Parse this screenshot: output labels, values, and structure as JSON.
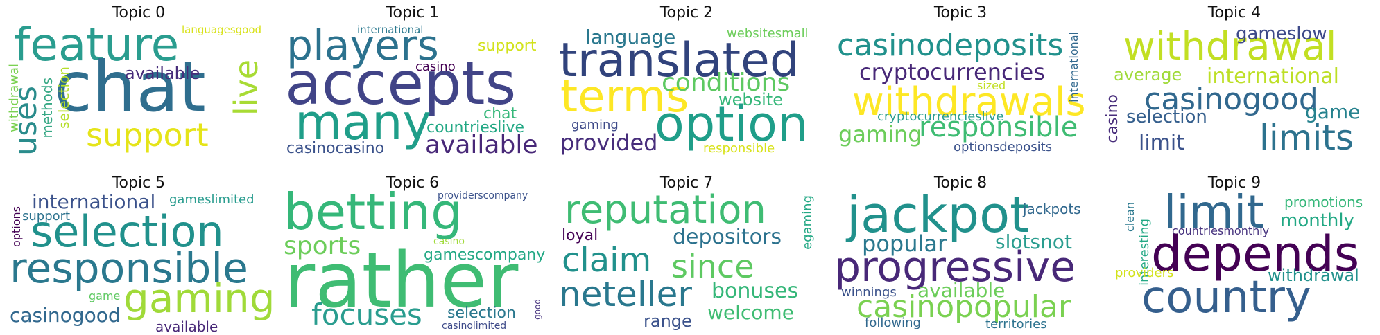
{
  "topics": [
    {
      "title": "Topic 0",
      "words": [
        {
          "text": "feature",
          "color": "#2a9d8f"
        },
        {
          "text": "chat",
          "color": "#2f6e8e"
        },
        {
          "text": "uses",
          "color": "#2a8c8c"
        },
        {
          "text": "live",
          "color": "#a8db34"
        },
        {
          "text": "support",
          "color": "#e5e419"
        },
        {
          "text": "available",
          "color": "#472c7a"
        },
        {
          "text": "withdrawal",
          "color": "#7ad151"
        },
        {
          "text": "methods",
          "color": "#37a885"
        },
        {
          "text": "selection",
          "color": "#b5de2b"
        },
        {
          "text": "languagesgood",
          "color": "#d8e219"
        }
      ]
    },
    {
      "title": "Topic 1",
      "words": [
        {
          "text": "players",
          "color": "#2c728e"
        },
        {
          "text": "accepts",
          "color": "#414487"
        },
        {
          "text": "many",
          "color": "#1f9e89"
        },
        {
          "text": "available",
          "color": "#482878"
        },
        {
          "text": "support",
          "color": "#d2e21b"
        },
        {
          "text": "casino",
          "color": "#440154"
        },
        {
          "text": "chat",
          "color": "#35b779"
        },
        {
          "text": "countrieslive",
          "color": "#22a884"
        },
        {
          "text": "casinocasino",
          "color": "#3b528b"
        },
        {
          "text": "international",
          "color": "#2a788e"
        }
      ]
    },
    {
      "title": "Topic 2",
      "words": [
        {
          "text": "language",
          "color": "#2a788e"
        },
        {
          "text": "websitesmall",
          "color": "#6ccd5a"
        },
        {
          "text": "translated",
          "color": "#31437c"
        },
        {
          "text": "terms",
          "color": "#fde725"
        },
        {
          "text": "conditions",
          "color": "#5ec962"
        },
        {
          "text": "website",
          "color": "#35b779"
        },
        {
          "text": "option",
          "color": "#1f9e89"
        },
        {
          "text": "gaming",
          "color": "#3e4a89"
        },
        {
          "text": "provided",
          "color": "#472d7b"
        },
        {
          "text": "responsible",
          "color": "#d8e219"
        }
      ]
    },
    {
      "title": "Topic 3",
      "words": [
        {
          "text": "casinodeposits",
          "color": "#21918c"
        },
        {
          "text": "cryptocurrencies",
          "color": "#482878"
        },
        {
          "text": "withdrawals",
          "color": "#fde725"
        },
        {
          "text": "sized",
          "color": "#c2df23"
        },
        {
          "text": "cryptocurrencieslive",
          "color": "#2a9d8f"
        },
        {
          "text": "gaming",
          "color": "#6ccd5a"
        },
        {
          "text": "responsible",
          "color": "#3fbc73"
        },
        {
          "text": "optionsdeposits",
          "color": "#3b528b"
        },
        {
          "text": "international",
          "color": "#31688e"
        }
      ]
    },
    {
      "title": "Topic 4",
      "words": [
        {
          "text": "withdrawal",
          "color": "#c2df23"
        },
        {
          "text": "gameslow",
          "color": "#3e4a89"
        },
        {
          "text": "average",
          "color": "#a0da39"
        },
        {
          "text": "international",
          "color": "#bddf26"
        },
        {
          "text": "casinogood",
          "color": "#31688e"
        },
        {
          "text": "game",
          "color": "#26828e"
        },
        {
          "text": "selection",
          "color": "#355f8d"
        },
        {
          "text": "limit",
          "color": "#3b528b"
        },
        {
          "text": "limits",
          "color": "#2c728e"
        },
        {
          "text": "casino",
          "color": "#472c7a"
        }
      ]
    },
    {
      "title": "Topic 5",
      "words": [
        {
          "text": "international",
          "color": "#3b528b"
        },
        {
          "text": "gameslimited",
          "color": "#2a9d8f"
        },
        {
          "text": "support",
          "color": "#2c728e"
        },
        {
          "text": "selection",
          "color": "#21918c"
        },
        {
          "text": "responsible",
          "color": "#2a788e"
        },
        {
          "text": "gaming",
          "color": "#a0da39"
        },
        {
          "text": "game",
          "color": "#5ec962"
        },
        {
          "text": "casinogood",
          "color": "#31688e"
        },
        {
          "text": "available",
          "color": "#482878"
        },
        {
          "text": "options",
          "color": "#440154"
        }
      ]
    },
    {
      "title": "Topic 6",
      "words": [
        {
          "text": "betting",
          "color": "#35b779"
        },
        {
          "text": "providerscompany",
          "color": "#3b528b"
        },
        {
          "text": "sports",
          "color": "#6ccd5a"
        },
        {
          "text": "casino",
          "color": "#a0da39"
        },
        {
          "text": "gamescompany",
          "color": "#22a884"
        },
        {
          "text": "rather",
          "color": "#3fbc73"
        },
        {
          "text": "focuses",
          "color": "#2a9d8f"
        },
        {
          "text": "selection",
          "color": "#2a788e"
        },
        {
          "text": "casinolimited",
          "color": "#3e4a89"
        },
        {
          "text": "good",
          "color": "#46327e"
        }
      ]
    },
    {
      "title": "Topic 7",
      "words": [
        {
          "text": "reputation",
          "color": "#3fbc73"
        },
        {
          "text": "loyal",
          "color": "#440154"
        },
        {
          "text": "depositors",
          "color": "#2c728e"
        },
        {
          "text": "egaming",
          "color": "#22a884"
        },
        {
          "text": "claim",
          "color": "#21918c"
        },
        {
          "text": "since",
          "color": "#5ec962"
        },
        {
          "text": "neteller",
          "color": "#2a788e"
        },
        {
          "text": "bonuses",
          "color": "#35b779"
        },
        {
          "text": "welcome",
          "color": "#3fbc73"
        },
        {
          "text": "range",
          "color": "#3b528b"
        }
      ]
    },
    {
      "title": "Topic 8",
      "words": [
        {
          "text": "jackpot",
          "color": "#21918c"
        },
        {
          "text": "jackpots",
          "color": "#31688e"
        },
        {
          "text": "popular",
          "color": "#2a788e"
        },
        {
          "text": "slotsnot",
          "color": "#2a9d8f"
        },
        {
          "text": "progressive",
          "color": "#482878"
        },
        {
          "text": "winnings",
          "color": "#3b528b"
        },
        {
          "text": "available",
          "color": "#6ccd5a"
        },
        {
          "text": "casinopopular",
          "color": "#7ad151"
        },
        {
          "text": "following",
          "color": "#31688e"
        },
        {
          "text": "territories",
          "color": "#2c728e"
        }
      ]
    },
    {
      "title": "Topic 9",
      "words": [
        {
          "text": "limit",
          "color": "#31688e"
        },
        {
          "text": "promotions",
          "color": "#35b779"
        },
        {
          "text": "monthly",
          "color": "#22a884"
        },
        {
          "text": "countriesmonthly",
          "color": "#46327e"
        },
        {
          "text": "depends",
          "color": "#440154"
        },
        {
          "text": "clean",
          "color": "#2a788e"
        },
        {
          "text": "interesting",
          "color": "#22a884"
        },
        {
          "text": "providers",
          "color": "#d2e21b"
        },
        {
          "text": "withdrawal",
          "color": "#21918c"
        },
        {
          "text": "country",
          "color": "#355f8d"
        }
      ]
    }
  ]
}
